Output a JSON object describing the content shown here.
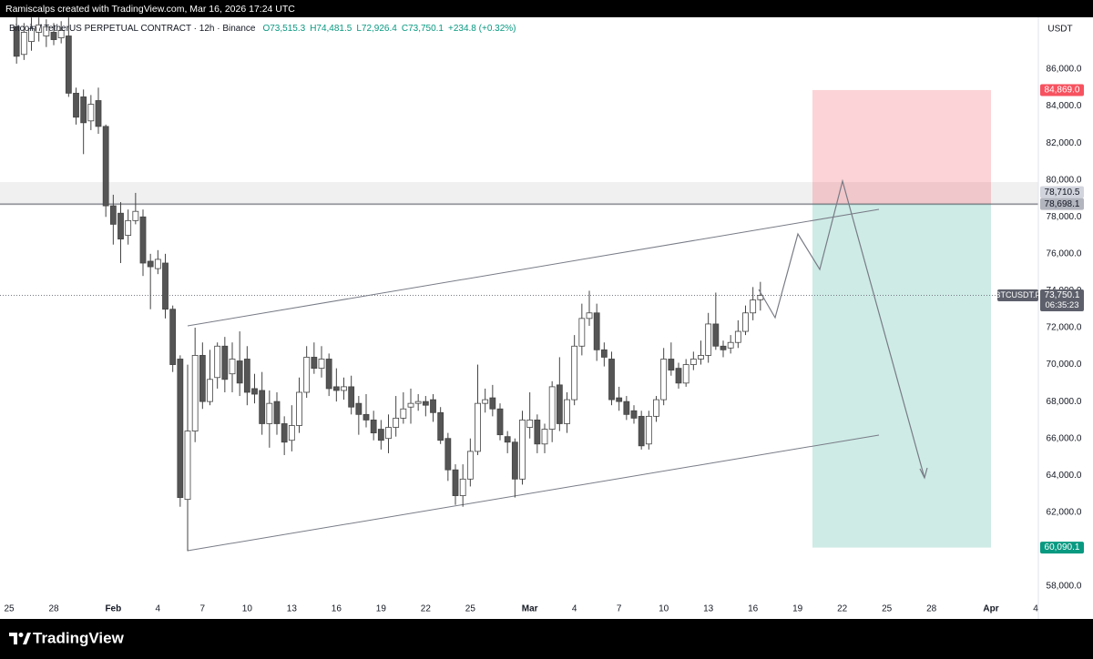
{
  "header": {
    "credit": "Ramiscalps created with TradingView.com, Mar 16, 2026 17:24 UTC"
  },
  "footer": {
    "brand": "TradingView"
  },
  "chart_data": {
    "type": "candlestick",
    "title": "Bitcoin / TetherUS PERPETUAL CONTRACT · 12h · Binance",
    "ohlc_legend": [
      "O73,515.3",
      "H74,481.5",
      "L72,926.4",
      "C73,750.1",
      "+234.8 (+0.32%)"
    ],
    "currency": "USDT",
    "up_color": "#ffffff",
    "down_color": "#555555",
    "border_color": "#444444",
    "grid": false,
    "xlim": [
      "2026-01-24T09:18",
      "2026-04-04T04:24"
    ],
    "xticks": [
      {
        "value": "2026-01-25",
        "label": "25"
      },
      {
        "value": "2026-01-28",
        "label": "28"
      },
      {
        "value": "2026-02-01",
        "label": "Feb"
      },
      {
        "value": "2026-02-04",
        "label": "4"
      },
      {
        "value": "2026-02-07",
        "label": "7"
      },
      {
        "value": "2026-02-10",
        "label": "10"
      },
      {
        "value": "2026-02-13",
        "label": "13"
      },
      {
        "value": "2026-02-16",
        "label": "16"
      },
      {
        "value": "2026-02-19",
        "label": "19"
      },
      {
        "value": "2026-02-22",
        "label": "22"
      },
      {
        "value": "2026-02-25",
        "label": "25"
      },
      {
        "value": "2026-03-01",
        "label": "Mar"
      },
      {
        "value": "2026-03-04",
        "label": "4"
      },
      {
        "value": "2026-03-07",
        "label": "7"
      },
      {
        "value": "2026-03-10",
        "label": "10"
      },
      {
        "value": "2026-03-13",
        "label": "13"
      },
      {
        "value": "2026-03-16",
        "label": "16"
      },
      {
        "value": "2026-03-19",
        "label": "19"
      },
      {
        "value": "2026-03-22",
        "label": "22"
      },
      {
        "value": "2026-03-25",
        "label": "25"
      },
      {
        "value": "2026-03-28",
        "label": "28"
      },
      {
        "value": "2026-04-01",
        "label": "Apr"
      },
      {
        "value": "2026-04-04",
        "label": "4"
      }
    ],
    "ylim": [
      57210,
      88860
    ],
    "yticks": [
      {
        "value": 58000,
        "label": "58,000.0"
      },
      {
        "value": 60000,
        "label": "60,000.0"
      },
      {
        "value": 62000,
        "label": "62,000.0"
      },
      {
        "value": 64000,
        "label": "64,000.0"
      },
      {
        "value": 66000,
        "label": "66,000.0"
      },
      {
        "value": 68000,
        "label": "68,000.0"
      },
      {
        "value": 70000,
        "label": "70,000.0"
      },
      {
        "value": 72000,
        "label": "72,000.0"
      },
      {
        "value": 74000,
        "label": "74,000.0"
      },
      {
        "value": 76000,
        "label": "76,000.0"
      },
      {
        "value": 78000,
        "label": "78,000.0"
      },
      {
        "value": 80000,
        "label": "80,000.0"
      },
      {
        "value": 82000,
        "label": "82,000.0"
      },
      {
        "value": 84000,
        "label": "84,000.0"
      },
      {
        "value": 86000,
        "label": "86,000.0"
      }
    ],
    "price_tags": [
      {
        "value": 84869.0,
        "label": "84,869.0",
        "color": "#f7525f",
        "text_color": "#ffffff"
      },
      {
        "value": 78710.5,
        "label": "78,710.5",
        "color": "#d1d4dc",
        "text_color": "#131722"
      },
      {
        "value": 78698.1,
        "label": "78,698.1",
        "color": "#b2b5be",
        "text_color": "#131722"
      },
      {
        "value": 60090.1,
        "label": "60,090.1",
        "color": "#089981",
        "text_color": "#ffffff"
      }
    ],
    "last_price": {
      "value": 73750.1,
      "label": "73,750.1",
      "symbol": "BTCUSDT.P",
      "countdown": "06:35:23",
      "color": "#5d606b"
    },
    "x": [
      "2026-01-25T12:00",
      "2026-01-26T00:00",
      "2026-01-26T12:00",
      "2026-01-27T00:00",
      "2026-01-27T12:00",
      "2026-01-28T00:00",
      "2026-01-28T12:00",
      "2026-01-29T00:00",
      "2026-01-29T12:00",
      "2026-01-30T00:00",
      "2026-01-30T12:00",
      "2026-01-31T00:00",
      "2026-01-31T12:00",
      "2026-02-01T00:00",
      "2026-02-01T12:00",
      "2026-02-02T00:00",
      "2026-02-02T12:00",
      "2026-02-03T00:00",
      "2026-02-03T12:00",
      "2026-02-04T00:00",
      "2026-02-04T12:00",
      "2026-02-05T00:00",
      "2026-02-05T12:00",
      "2026-02-06T00:00",
      "2026-02-06T12:00",
      "2026-02-07T00:00",
      "2026-02-07T12:00",
      "2026-02-08T00:00",
      "2026-02-08T12:00",
      "2026-02-09T00:00",
      "2026-02-09T12:00",
      "2026-02-10T00:00",
      "2026-02-10T12:00",
      "2026-02-11T00:00",
      "2026-02-11T12:00",
      "2026-02-12T00:00",
      "2026-02-12T12:00",
      "2026-02-13T00:00",
      "2026-02-13T12:00",
      "2026-02-14T00:00",
      "2026-02-14T12:00",
      "2026-02-15T00:00",
      "2026-02-15T12:00",
      "2026-02-16T00:00",
      "2026-02-16T12:00",
      "2026-02-17T00:00",
      "2026-02-17T12:00",
      "2026-02-18T00:00",
      "2026-02-18T12:00",
      "2026-02-19T00:00",
      "2026-02-19T12:00",
      "2026-02-20T00:00",
      "2026-02-20T12:00",
      "2026-02-21T00:00",
      "2026-02-21T12:00",
      "2026-02-22T00:00",
      "2026-02-22T12:00",
      "2026-02-23T00:00",
      "2026-02-23T12:00",
      "2026-02-24T00:00",
      "2026-02-24T12:00",
      "2026-02-25T00:00",
      "2026-02-25T12:00",
      "2026-02-26T00:00",
      "2026-02-26T12:00",
      "2026-02-27T00:00",
      "2026-02-27T12:00",
      "2026-02-28T00:00",
      "2026-02-28T12:00",
      "2026-03-01T00:00",
      "2026-03-01T12:00",
      "2026-03-02T00:00",
      "2026-03-02T12:00",
      "2026-03-03T00:00",
      "2026-03-03T12:00",
      "2026-03-04T00:00",
      "2026-03-04T12:00",
      "2026-03-05T00:00",
      "2026-03-05T12:00",
      "2026-03-06T00:00",
      "2026-03-06T12:00",
      "2026-03-07T00:00",
      "2026-03-07T12:00",
      "2026-03-08T00:00",
      "2026-03-08T12:00",
      "2026-03-09T00:00",
      "2026-03-09T12:00",
      "2026-03-10T00:00",
      "2026-03-10T12:00",
      "2026-03-11T00:00",
      "2026-03-11T12:00",
      "2026-03-12T00:00",
      "2026-03-12T12:00",
      "2026-03-13T00:00",
      "2026-03-13T12:00",
      "2026-03-14T00:00",
      "2026-03-14T12:00",
      "2026-03-15T00:00",
      "2026-03-15T12:00",
      "2026-03-16T00:00",
      "2026-03-16T12:00"
    ],
    "ohlc": [
      [
        88300,
        88800,
        86300,
        86700
      ],
      [
        86800,
        88500,
        86500,
        88000
      ],
      [
        87500,
        88800,
        87000,
        88200
      ],
      [
        88000,
        88800,
        87500,
        88400
      ],
      [
        87800,
        88700,
        87200,
        88300
      ],
      [
        88000,
        88500,
        87300,
        87600
      ],
      [
        87700,
        88600,
        87400,
        88100
      ],
      [
        87800,
        88800,
        84500,
        84700
      ],
      [
        84700,
        85000,
        83000,
        83400
      ],
      [
        84500,
        84900,
        81400,
        83100
      ],
      [
        83200,
        84600,
        82700,
        84100
      ],
      [
        84300,
        85000,
        82500,
        82900
      ],
      [
        82900,
        83000,
        78000,
        78600
      ],
      [
        78600,
        79200,
        76500,
        77600
      ],
      [
        78200,
        78800,
        75500,
        76800
      ],
      [
        77000,
        78400,
        76500,
        77800
      ],
      [
        77800,
        79300,
        77600,
        78300
      ],
      [
        78000,
        78400,
        74800,
        75500
      ],
      [
        75600,
        76000,
        73000,
        75300
      ],
      [
        75200,
        76200,
        74900,
        75700
      ],
      [
        75500,
        76000,
        72500,
        73000
      ],
      [
        73000,
        73200,
        69600,
        70000
      ],
      [
        70300,
        70500,
        62300,
        62800
      ],
      [
        62700,
        70000,
        59900,
        66400
      ],
      [
        66400,
        72000,
        65800,
        70500
      ],
      [
        70500,
        71200,
        67600,
        68000
      ],
      [
        68000,
        70800,
        67800,
        69200
      ],
      [
        69300,
        71200,
        68700,
        71000
      ],
      [
        71000,
        71500,
        68500,
        69200
      ],
      [
        69500,
        71200,
        68500,
        70300
      ],
      [
        70200,
        71800,
        68300,
        69000
      ],
      [
        70300,
        71000,
        67800,
        68500
      ],
      [
        68700,
        69500,
        67900,
        68400
      ],
      [
        68600,
        69600,
        66200,
        66800
      ],
      [
        66800,
        68600,
        65500,
        67900
      ],
      [
        68000,
        68500,
        66200,
        66800
      ],
      [
        66800,
        67200,
        65100,
        65800
      ],
      [
        65900,
        67800,
        65300,
        66700
      ],
      [
        66700,
        69300,
        66300,
        68500
      ],
      [
        68500,
        71000,
        68200,
        70400
      ],
      [
        70400,
        71200,
        69500,
        69800
      ],
      [
        69800,
        71000,
        69300,
        70300
      ],
      [
        70300,
        70600,
        68300,
        68700
      ],
      [
        68800,
        69800,
        68000,
        68600
      ],
      [
        68600,
        69300,
        68100,
        68800
      ],
      [
        68800,
        69400,
        67300,
        67700
      ],
      [
        67900,
        68300,
        66200,
        67300
      ],
      [
        67300,
        68400,
        66600,
        67000
      ],
      [
        67000,
        67500,
        65900,
        66300
      ],
      [
        66500,
        67000,
        65400,
        65900
      ],
      [
        66000,
        67300,
        65200,
        66600
      ],
      [
        66600,
        68300,
        66100,
        67100
      ],
      [
        67100,
        68500,
        66800,
        67600
      ],
      [
        67700,
        68700,
        66800,
        67900
      ],
      [
        67900,
        68400,
        67500,
        68000
      ],
      [
        68000,
        68300,
        67200,
        67800
      ],
      [
        68100,
        68400,
        66900,
        67400
      ],
      [
        67400,
        67700,
        65700,
        65900
      ],
      [
        66000,
        66300,
        63700,
        64300
      ],
      [
        64300,
        64600,
        62400,
        62900
      ],
      [
        62900,
        64600,
        62300,
        63800
      ],
      [
        63800,
        66000,
        63400,
        65300
      ],
      [
        65300,
        70000,
        65100,
        67900
      ],
      [
        67900,
        68700,
        67400,
        68100
      ],
      [
        68200,
        68900,
        67200,
        67600
      ],
      [
        67600,
        67900,
        65900,
        66200
      ],
      [
        66100,
        66400,
        65200,
        65800
      ],
      [
        65800,
        66000,
        62800,
        63800
      ],
      [
        63800,
        67500,
        63500,
        67000
      ],
      [
        66600,
        68500,
        66000,
        67000
      ],
      [
        67000,
        67300,
        65200,
        65700
      ],
      [
        65700,
        66800,
        65200,
        66500
      ],
      [
        66500,
        69100,
        65800,
        68800
      ],
      [
        68900,
        70400,
        66400,
        66800
      ],
      [
        66800,
        68500,
        66300,
        68100
      ],
      [
        68100,
        71600,
        67800,
        71000
      ],
      [
        71000,
        73300,
        70500,
        72500
      ],
      [
        72500,
        74000,
        72100,
        72800
      ],
      [
        72800,
        73300,
        70200,
        70800
      ],
      [
        70800,
        71200,
        69900,
        70400
      ],
      [
        70300,
        70700,
        67800,
        68100
      ],
      [
        68200,
        68800,
        67500,
        68000
      ],
      [
        68000,
        68300,
        67000,
        67300
      ],
      [
        67500,
        67800,
        66800,
        67100
      ],
      [
        67200,
        67500,
        65400,
        65600
      ],
      [
        65700,
        67500,
        65400,
        67200
      ],
      [
        67200,
        68300,
        66900,
        68100
      ],
      [
        68100,
        70900,
        67800,
        70300
      ],
      [
        70300,
        71200,
        69400,
        69700
      ],
      [
        69800,
        70100,
        68700,
        69000
      ],
      [
        69000,
        70300,
        68800,
        70000
      ],
      [
        70000,
        70700,
        69700,
        70300
      ],
      [
        70300,
        71300,
        70000,
        70500
      ],
      [
        70500,
        72800,
        70100,
        72200
      ],
      [
        72200,
        73900,
        70800,
        71000
      ],
      [
        71000,
        71300,
        70400,
        70800
      ],
      [
        70900,
        71600,
        70600,
        71200
      ],
      [
        71200,
        72400,
        70900,
        71800
      ],
      [
        71800,
        73200,
        71600,
        72800
      ],
      [
        72800,
        74200,
        72400,
        73500
      ],
      [
        73515.3,
        74481.5,
        72926.4,
        73750.1
      ]
    ]
  }
}
